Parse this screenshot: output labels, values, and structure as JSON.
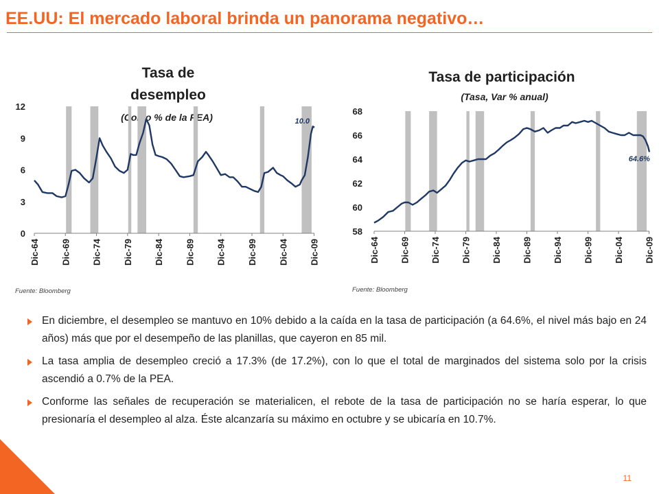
{
  "page": {
    "title": "EE.UU: El mercado laboral brinda un panorama negativo…",
    "page_number": "11",
    "accent_color": "#f26522"
  },
  "chart_data": [
    {
      "type": "line",
      "title": "Tasa de desempleo",
      "subtitle": "(Como % de la PEA)",
      "source": "Fuente: Bloomberg",
      "line_color": "#1f3864",
      "shade_color": "#c0c0c0",
      "x_range": [
        1964.9,
        2009.95
      ],
      "ylim": [
        0,
        12
      ],
      "yticks": [
        0,
        3,
        6,
        9,
        12
      ],
      "xtick_labels": [
        "Dic-64",
        "Dic-69",
        "Dic-74",
        "Dic-79",
        "Dic-84",
        "Dic-89",
        "Dic-94",
        "Dic-99",
        "Dic-04",
        "Dic-09"
      ],
      "xtick_values": [
        1964.9,
        1969.9,
        1974.9,
        1979.9,
        1984.9,
        1989.9,
        1994.9,
        1999.9,
        2004.9,
        2009.9
      ],
      "recessions": [
        [
          1970.0,
          1970.9
        ],
        [
          1973.9,
          1975.2
        ],
        [
          1980.0,
          1980.5
        ],
        [
          1981.5,
          1982.9
        ],
        [
          1990.5,
          1991.2
        ],
        [
          2001.2,
          2001.9
        ],
        [
          2007.9,
          2009.5
        ]
      ],
      "annotation": {
        "text": "10.0",
        "x": 2008.0,
        "y": 10.0
      },
      "series": [
        {
          "name": "",
          "points": [
            [
              1964.9,
              5.0
            ],
            [
              1965.5,
              4.6
            ],
            [
              1966.2,
              3.9
            ],
            [
              1967.0,
              3.8
            ],
            [
              1967.8,
              3.8
            ],
            [
              1968.5,
              3.5
            ],
            [
              1969.3,
              3.4
            ],
            [
              1969.9,
              3.5
            ],
            [
              1970.4,
              4.6
            ],
            [
              1970.9,
              5.9
            ],
            [
              1971.5,
              6.0
            ],
            [
              1972.2,
              5.7
            ],
            [
              1972.9,
              5.2
            ],
            [
              1973.7,
              4.8
            ],
            [
              1974.3,
              5.2
            ],
            [
              1974.9,
              7.2
            ],
            [
              1975.4,
              9.0
            ],
            [
              1975.9,
              8.3
            ],
            [
              1976.5,
              7.7
            ],
            [
              1977.2,
              7.1
            ],
            [
              1977.9,
              6.3
            ],
            [
              1978.6,
              5.9
            ],
            [
              1979.3,
              5.7
            ],
            [
              1979.9,
              6.0
            ],
            [
              1980.4,
              7.5
            ],
            [
              1980.8,
              7.4
            ],
            [
              1981.3,
              7.4
            ],
            [
              1981.8,
              8.5
            ],
            [
              1982.4,
              9.5
            ],
            [
              1982.9,
              10.8
            ],
            [
              1983.4,
              10.2
            ],
            [
              1983.9,
              8.4
            ],
            [
              1984.4,
              7.4
            ],
            [
              1984.9,
              7.3
            ],
            [
              1985.5,
              7.2
            ],
            [
              1986.2,
              7.0
            ],
            [
              1986.9,
              6.6
            ],
            [
              1987.6,
              6.0
            ],
            [
              1988.3,
              5.4
            ],
            [
              1988.9,
              5.3
            ],
            [
              1989.9,
              5.4
            ],
            [
              1990.5,
              5.5
            ],
            [
              1991.2,
              6.8
            ],
            [
              1991.9,
              7.2
            ],
            [
              1992.5,
              7.7
            ],
            [
              1992.9,
              7.4
            ],
            [
              1993.6,
              6.8
            ],
            [
              1994.3,
              6.1
            ],
            [
              1994.9,
              5.5
            ],
            [
              1995.6,
              5.6
            ],
            [
              1996.3,
              5.3
            ],
            [
              1996.9,
              5.3
            ],
            [
              1997.6,
              4.9
            ],
            [
              1998.3,
              4.4
            ],
            [
              1998.9,
              4.4
            ],
            [
              1999.6,
              4.2
            ],
            [
              2000.3,
              4.0
            ],
            [
              2000.9,
              3.9
            ],
            [
              2001.4,
              4.4
            ],
            [
              2001.9,
              5.7
            ],
            [
              2002.5,
              5.8
            ],
            [
              2003.3,
              6.2
            ],
            [
              2003.9,
              5.7
            ],
            [
              2004.5,
              5.5
            ],
            [
              2004.9,
              5.4
            ],
            [
              2005.6,
              5.0
            ],
            [
              2006.3,
              4.7
            ],
            [
              2006.9,
              4.4
            ],
            [
              2007.6,
              4.6
            ],
            [
              2007.9,
              5.0
            ],
            [
              2008.4,
              5.5
            ],
            [
              2008.9,
              7.2
            ],
            [
              2009.4,
              9.4
            ],
            [
              2009.7,
              10.1
            ],
            [
              2009.95,
              10.0
            ]
          ]
        }
      ]
    },
    {
      "type": "line",
      "title": "Tasa de participación",
      "subtitle": "(Tasa, Var % anual)",
      "source": "Fuente: Bloomberg",
      "line_color": "#1f3864",
      "shade_color": "#c0c0c0",
      "x_range": [
        1964.9,
        2009.95
      ],
      "ylim": [
        58,
        68
      ],
      "yticks": [
        58,
        60,
        62,
        64,
        66,
        68
      ],
      "xtick_labels": [
        "Dic-64",
        "Dic-69",
        "Dic-74",
        "Dic-79",
        "Dic-84",
        "Dic-89",
        "Dic-94",
        "Dic-99",
        "Dic-04",
        "Dic-09"
      ],
      "xtick_values": [
        1964.9,
        1969.9,
        1974.9,
        1979.9,
        1984.9,
        1989.9,
        1994.9,
        1999.9,
        2004.9,
        2009.9
      ],
      "recessions": [
        [
          1970.0,
          1970.9
        ],
        [
          1973.9,
          1975.2
        ],
        [
          1980.0,
          1980.5
        ],
        [
          1981.5,
          1982.9
        ],
        [
          1990.5,
          1991.2
        ],
        [
          2001.2,
          2001.9
        ],
        [
          2007.9,
          2009.5
        ]
      ],
      "annotation": {
        "text": "64.6%",
        "x": 2008.3,
        "y": 63.5
      },
      "series": [
        {
          "name": "",
          "points": [
            [
              1964.9,
              58.7
            ],
            [
              1965.6,
              58.9
            ],
            [
              1966.4,
              59.2
            ],
            [
              1967.2,
              59.6
            ],
            [
              1968.0,
              59.7
            ],
            [
              1968.7,
              60.0
            ],
            [
              1969.4,
              60.3
            ],
            [
              1969.9,
              60.4
            ],
            [
              1970.5,
              60.4
            ],
            [
              1971.2,
              60.2
            ],
            [
              1971.9,
              60.4
            ],
            [
              1972.6,
              60.7
            ],
            [
              1973.3,
              61.0
            ],
            [
              1973.9,
              61.3
            ],
            [
              1974.6,
              61.4
            ],
            [
              1975.2,
              61.2
            ],
            [
              1975.9,
              61.5
            ],
            [
              1976.6,
              61.8
            ],
            [
              1977.3,
              62.3
            ],
            [
              1977.9,
              62.8
            ],
            [
              1978.6,
              63.3
            ],
            [
              1979.3,
              63.7
            ],
            [
              1979.9,
              63.9
            ],
            [
              1980.5,
              63.8
            ],
            [
              1981.2,
              63.9
            ],
            [
              1981.9,
              64.0
            ],
            [
              1982.5,
              64.0
            ],
            [
              1983.2,
              64.0
            ],
            [
              1983.9,
              64.3
            ],
            [
              1984.6,
              64.5
            ],
            [
              1985.3,
              64.8
            ],
            [
              1985.9,
              65.1
            ],
            [
              1986.6,
              65.4
            ],
            [
              1987.3,
              65.6
            ],
            [
              1987.9,
              65.8
            ],
            [
              1988.6,
              66.1
            ],
            [
              1989.3,
              66.5
            ],
            [
              1989.9,
              66.6
            ],
            [
              1990.5,
              66.5
            ],
            [
              1991.2,
              66.3
            ],
            [
              1991.9,
              66.4
            ],
            [
              1992.6,
              66.6
            ],
            [
              1993.3,
              66.2
            ],
            [
              1993.9,
              66.4
            ],
            [
              1994.6,
              66.6
            ],
            [
              1995.3,
              66.6
            ],
            [
              1995.9,
              66.8
            ],
            [
              1996.6,
              66.8
            ],
            [
              1997.3,
              67.1
            ],
            [
              1997.9,
              67.0
            ],
            [
              1998.6,
              67.1
            ],
            [
              1999.3,
              67.2
            ],
            [
              1999.9,
              67.1
            ],
            [
              2000.5,
              67.2
            ],
            [
              2001.2,
              67.0
            ],
            [
              2001.9,
              66.8
            ],
            [
              2002.6,
              66.6
            ],
            [
              2003.3,
              66.3
            ],
            [
              2003.9,
              66.2
            ],
            [
              2004.6,
              66.1
            ],
            [
              2005.3,
              66.0
            ],
            [
              2005.9,
              66.0
            ],
            [
              2006.6,
              66.2
            ],
            [
              2007.3,
              66.0
            ],
            [
              2007.9,
              66.0
            ],
            [
              2008.5,
              66.0
            ],
            [
              2008.9,
              65.9
            ],
            [
              2009.3,
              65.6
            ],
            [
              2009.7,
              65.1
            ],
            [
              2009.95,
              64.6
            ]
          ]
        }
      ]
    }
  ],
  "bullets": [
    "En diciembre, el desempleo se mantuvo en 10% debido a la caída en la tasa de participación (a 64.6%, el nivel más bajo en 24 años) más que por el desempeño de las planillas, que cayeron en 85 mil.",
    "La tasa amplia de desempleo creció a 17.3% (de 17.2%), con lo que el total de marginados del sistema solo por la crisis ascendió a 0.7% de la PEA.",
    "Conforme las señales de recuperación se materialicen, el rebote de la tasa de participación no se haría esperar, lo que presionaría el desempleo al alza. Éste alcanzaría su máximo en octubre y se ubicaría en 10.7%."
  ]
}
